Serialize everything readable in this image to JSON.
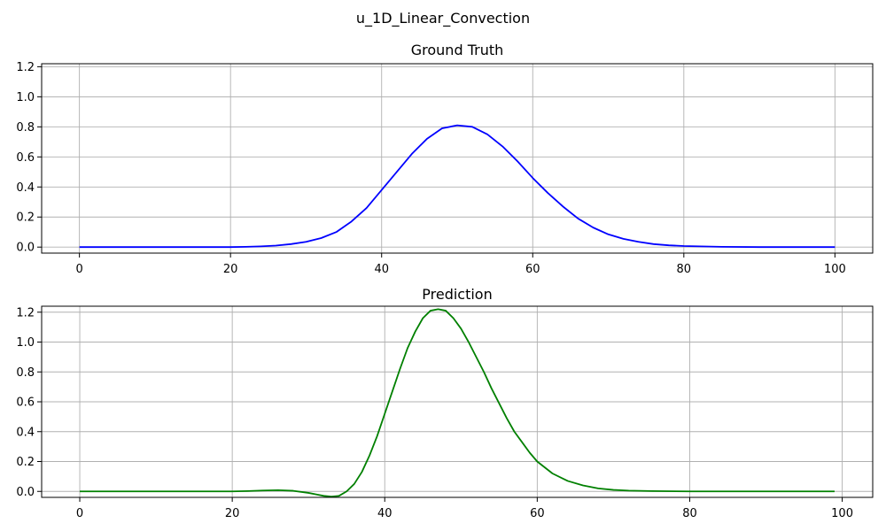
{
  "figure": {
    "suptitle": "u_1D_Linear_Convection"
  },
  "chart_data": [
    {
      "type": "line",
      "title": "Ground Truth",
      "xlabel": "",
      "ylabel": "",
      "xlim": [
        -5,
        105
      ],
      "ylim": [
        -0.04,
        1.22
      ],
      "xticks": [
        0,
        20,
        40,
        60,
        80,
        100
      ],
      "yticks": [
        0.0,
        0.2,
        0.4,
        0.6,
        0.8,
        1.0,
        1.2
      ],
      "grid": true,
      "series": [
        {
          "color": "#0000ff",
          "x": [
            0,
            10,
            20,
            22,
            24,
            26,
            28,
            30,
            32,
            34,
            36,
            38,
            40,
            42,
            44,
            46,
            48,
            50,
            52,
            54,
            56,
            58,
            60,
            62,
            64,
            66,
            68,
            70,
            72,
            74,
            76,
            78,
            80,
            85,
            90,
            95,
            100
          ],
          "y": [
            0.0,
            0.0,
            0.0,
            0.002,
            0.005,
            0.01,
            0.02,
            0.035,
            0.06,
            0.1,
            0.17,
            0.26,
            0.38,
            0.5,
            0.62,
            0.72,
            0.79,
            0.81,
            0.8,
            0.75,
            0.67,
            0.57,
            0.46,
            0.36,
            0.27,
            0.19,
            0.13,
            0.085,
            0.055,
            0.035,
            0.02,
            0.012,
            0.007,
            0.002,
            0.0,
            0.0,
            0.0
          ]
        }
      ]
    },
    {
      "type": "line",
      "title": "Prediction",
      "xlabel": "",
      "ylabel": "",
      "xlim": [
        -5,
        104
      ],
      "ylim": [
        -0.04,
        1.24
      ],
      "xticks": [
        0,
        20,
        40,
        60,
        80,
        100
      ],
      "yticks": [
        0.0,
        0.2,
        0.4,
        0.6,
        0.8,
        1.0,
        1.2
      ],
      "grid": true,
      "series": [
        {
          "color": "#008000",
          "x": [
            0,
            10,
            20,
            22,
            24,
            26,
            28,
            30,
            31,
            32,
            33,
            34,
            35,
            36,
            37,
            38,
            39,
            40,
            41,
            42,
            43,
            44,
            45,
            46,
            47,
            48,
            49,
            50,
            51,
            52,
            53,
            54,
            55,
            56,
            57,
            58,
            59,
            60,
            62,
            64,
            66,
            68,
            70,
            72,
            75,
            80,
            85,
            90,
            95,
            99
          ],
          "y": [
            0.0,
            0.0,
            0.0,
            0.002,
            0.006,
            0.008,
            0.004,
            -0.01,
            -0.02,
            -0.03,
            -0.035,
            -0.03,
            0.0,
            0.05,
            0.13,
            0.24,
            0.37,
            0.52,
            0.67,
            0.82,
            0.96,
            1.07,
            1.16,
            1.21,
            1.22,
            1.21,
            1.16,
            1.09,
            1.0,
            0.9,
            0.8,
            0.69,
            0.59,
            0.49,
            0.4,
            0.33,
            0.26,
            0.2,
            0.12,
            0.07,
            0.04,
            0.02,
            0.01,
            0.005,
            0.002,
            0.0,
            0.0,
            0.0,
            0.0,
            0.0
          ]
        }
      ]
    }
  ]
}
